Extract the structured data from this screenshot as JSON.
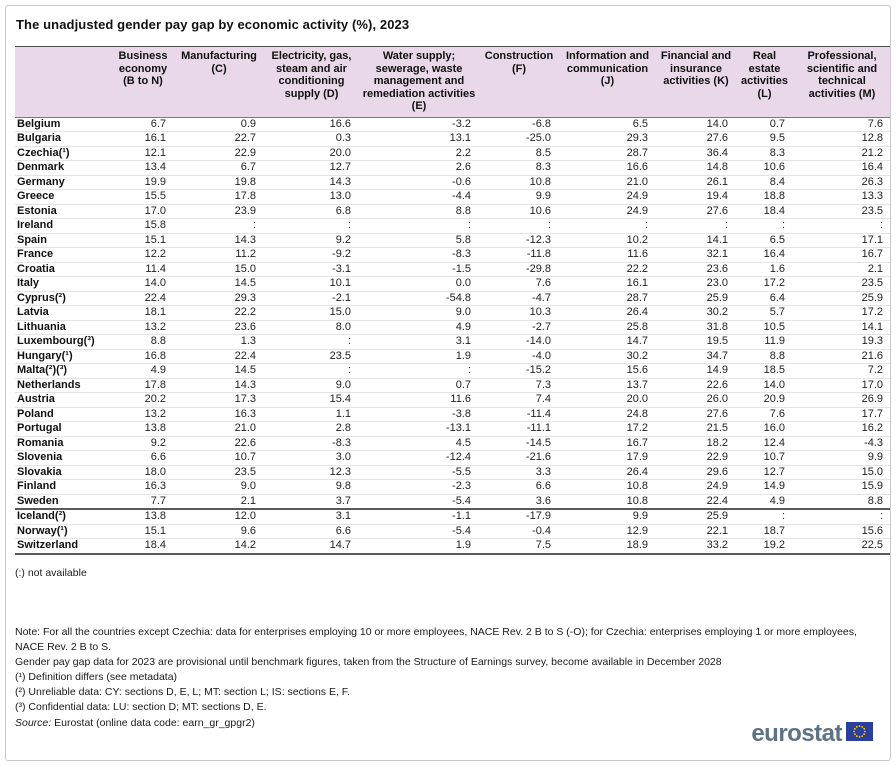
{
  "title": "The unadjusted gender pay gap by economic activity (%), 2023",
  "chart_data": {
    "type": "table",
    "title": "The unadjusted gender pay gap by economic activity (%), 2023",
    "unit": "%",
    "year": "2023",
    "not_available_symbol": ":",
    "columns": [
      "Business economy (B to N)",
      "Manufacturing (C)",
      "Electricity, gas, steam and air conditioning supply (D)",
      "Water supply; sewerage, waste management and remediation activities (E)",
      "Construction (F)",
      "Information and communication (J)",
      "Financial and insurance activities (K)",
      "Real estate activities (L)",
      "Professional, scientific and technical activities (M)"
    ],
    "eu_rows": [
      {
        "country": "Belgium",
        "values": [
          "6.7",
          "0.9",
          "16.6",
          "-3.2",
          "-6.8",
          "6.5",
          "14.0",
          "0.7",
          "7.6"
        ]
      },
      {
        "country": "Bulgaria",
        "values": [
          "16.1",
          "22.7",
          "0.3",
          "13.1",
          "-25.0",
          "29.3",
          "27.6",
          "9.5",
          "12.8"
        ]
      },
      {
        "country": "Czechia(¹)",
        "values": [
          "12.1",
          "22.9",
          "20.0",
          "2.2",
          "8.5",
          "28.7",
          "36.4",
          "8.3",
          "21.2"
        ]
      },
      {
        "country": "Denmark",
        "values": [
          "13.4",
          "6.7",
          "12.7",
          "2.6",
          "8.3",
          "16.6",
          "14.8",
          "10.6",
          "16.4"
        ]
      },
      {
        "country": "Germany",
        "values": [
          "19.9",
          "19.8",
          "14.3",
          "-0.6",
          "10.8",
          "21.0",
          "26.1",
          "8.4",
          "26.3"
        ]
      },
      {
        "country": "Greece",
        "values": [
          "15.5",
          "17.8",
          "13.0",
          "-4.4",
          "9.9",
          "24.9",
          "19.4",
          "18.8",
          "13.3"
        ]
      },
      {
        "country": "Estonia",
        "values": [
          "17.0",
          "23.9",
          "6.8",
          "8.8",
          "10.6",
          "24.9",
          "27.6",
          "18.4",
          "23.5"
        ]
      },
      {
        "country": "Ireland",
        "values": [
          "15.8",
          ":",
          ":",
          ":",
          ":",
          ":",
          ":",
          ":",
          ":"
        ]
      },
      {
        "country": "Spain",
        "values": [
          "15.1",
          "14.3",
          "9.2",
          "5.8",
          "-12.3",
          "10.2",
          "14.1",
          "6.5",
          "17.1"
        ]
      },
      {
        "country": "France",
        "values": [
          "12.2",
          "11.2",
          "-9.2",
          "-8.3",
          "-11.8",
          "11.6",
          "32.1",
          "16.4",
          "16.7"
        ]
      },
      {
        "country": "Croatia",
        "values": [
          "11.4",
          "15.0",
          "-3.1",
          "-1.5",
          "-29.8",
          "22.2",
          "23.6",
          "1.6",
          "2.1"
        ]
      },
      {
        "country": "Italy",
        "values": [
          "14.0",
          "14.5",
          "10.1",
          "0.0",
          "7.6",
          "16.1",
          "23.0",
          "17.2",
          "23.5"
        ]
      },
      {
        "country": "Cyprus(²)",
        "values": [
          "22.4",
          "29.3",
          "-2.1",
          "-54.8",
          "-4.7",
          "28.7",
          "25.9",
          "6.4",
          "25.9"
        ]
      },
      {
        "country": "Latvia",
        "values": [
          "18.1",
          "22.2",
          "15.0",
          "9.0",
          "10.3",
          "26.4",
          "30.2",
          "5.7",
          "17.2"
        ]
      },
      {
        "country": "Lithuania",
        "values": [
          "13.2",
          "23.6",
          "8.0",
          "4.9",
          "-2.7",
          "25.8",
          "31.8",
          "10.5",
          "14.1"
        ]
      },
      {
        "country": "Luxembourg(³)",
        "values": [
          "8.8",
          "1.3",
          ":",
          "3.1",
          "-14.0",
          "14.7",
          "19.5",
          "11.9",
          "19.3"
        ]
      },
      {
        "country": "Hungary(¹)",
        "values": [
          "16.8",
          "22.4",
          "23.5",
          "1.9",
          "-4.0",
          "30.2",
          "34.7",
          "8.8",
          "21.6"
        ]
      },
      {
        "country": "Malta(²)(³)",
        "values": [
          "4.9",
          "14.5",
          ":",
          ":",
          "-15.2",
          "15.6",
          "14.9",
          "18.5",
          "7.2"
        ]
      },
      {
        "country": "Netherlands",
        "values": [
          "17.8",
          "14.3",
          "9.0",
          "0.7",
          "7.3",
          "13.7",
          "22.6",
          "14.0",
          "17.0"
        ]
      },
      {
        "country": "Austria",
        "values": [
          "20.2",
          "17.3",
          "15.4",
          "11.6",
          "7.4",
          "20.0",
          "26.0",
          "20.9",
          "26.9"
        ]
      },
      {
        "country": "Poland",
        "values": [
          "13.2",
          "16.3",
          "1.1",
          "-3.8",
          "-11.4",
          "24.8",
          "27.6",
          "7.6",
          "17.7"
        ]
      },
      {
        "country": "Portugal",
        "values": [
          "13.8",
          "21.0",
          "2.8",
          "-13.1",
          "-11.1",
          "17.2",
          "21.5",
          "16.0",
          "16.2"
        ]
      },
      {
        "country": "Romania",
        "values": [
          "9.2",
          "22.6",
          "-8.3",
          "4.5",
          "-14.5",
          "16.7",
          "18.2",
          "12.4",
          "-4.3"
        ]
      },
      {
        "country": "Slovenia",
        "values": [
          "6.6",
          "10.7",
          "3.0",
          "-12.4",
          "-21.6",
          "17.9",
          "22.9",
          "10.7",
          "9.9"
        ]
      },
      {
        "country": "Slovakia",
        "values": [
          "18.0",
          "23.5",
          "12.3",
          "-5.5",
          "3.3",
          "26.4",
          "29.6",
          "12.7",
          "15.0"
        ]
      },
      {
        "country": "Finland",
        "values": [
          "16.3",
          "9.0",
          "9.8",
          "-2.3",
          "6.6",
          "10.8",
          "24.9",
          "14.9",
          "15.9"
        ]
      },
      {
        "country": "Sweden",
        "values": [
          "7.7",
          "2.1",
          "3.7",
          "-5.4",
          "3.6",
          "10.8",
          "22.4",
          "4.9",
          "8.8"
        ]
      }
    ],
    "efta_rows": [
      {
        "country": "Iceland(²)",
        "values": [
          "13.8",
          "12.0",
          "3.1",
          "-1.1",
          "-17.9",
          "9.9",
          "25.9",
          ":",
          ":"
        ]
      },
      {
        "country": "Norway(¹)",
        "values": [
          "15.1",
          "9.6",
          "6.6",
          "-5.4",
          "-0.4",
          "12.9",
          "22.1",
          "18.7",
          "15.6"
        ]
      },
      {
        "country": "Switzerland",
        "values": [
          "18.4",
          "14.2",
          "14.7",
          "1.9",
          "7.5",
          "18.9",
          "33.2",
          "19.2",
          "22.5"
        ]
      }
    ]
  },
  "footnotes": {
    "not_available": "(:) not available",
    "note_line1": "Note: For all the countries except Czechia: data for enterprises employing 10 or more employees, NACE Rev. 2 B to S (-O); for Czechia: enterprises employing 1 or more employees, NACE Rev. 2 B to S.",
    "provisional": "Gender pay gap data for 2023 are provisional until benchmark figures, taken from the Structure of Earnings survey, become available in December 2028",
    "fn1": "(¹) Definition differs (see metadata)",
    "fn2": "(²) Unreliable data: CY: sections D, E, L; MT: section L; IS: sections E, F.",
    "fn3": "(³) Confidential data: LU: section D; MT: sections D, E.",
    "source_label": "Source:",
    "source_text": " Eurostat (online data code: earn_gr_gpgr2)"
  },
  "logo": {
    "text": "eurostat"
  },
  "colors": {
    "header_bg": "#e8d8e8",
    "logo_text": "#5d7384",
    "flag_blue": "#2a3f9d",
    "flag_stars": "#ffcc00"
  }
}
